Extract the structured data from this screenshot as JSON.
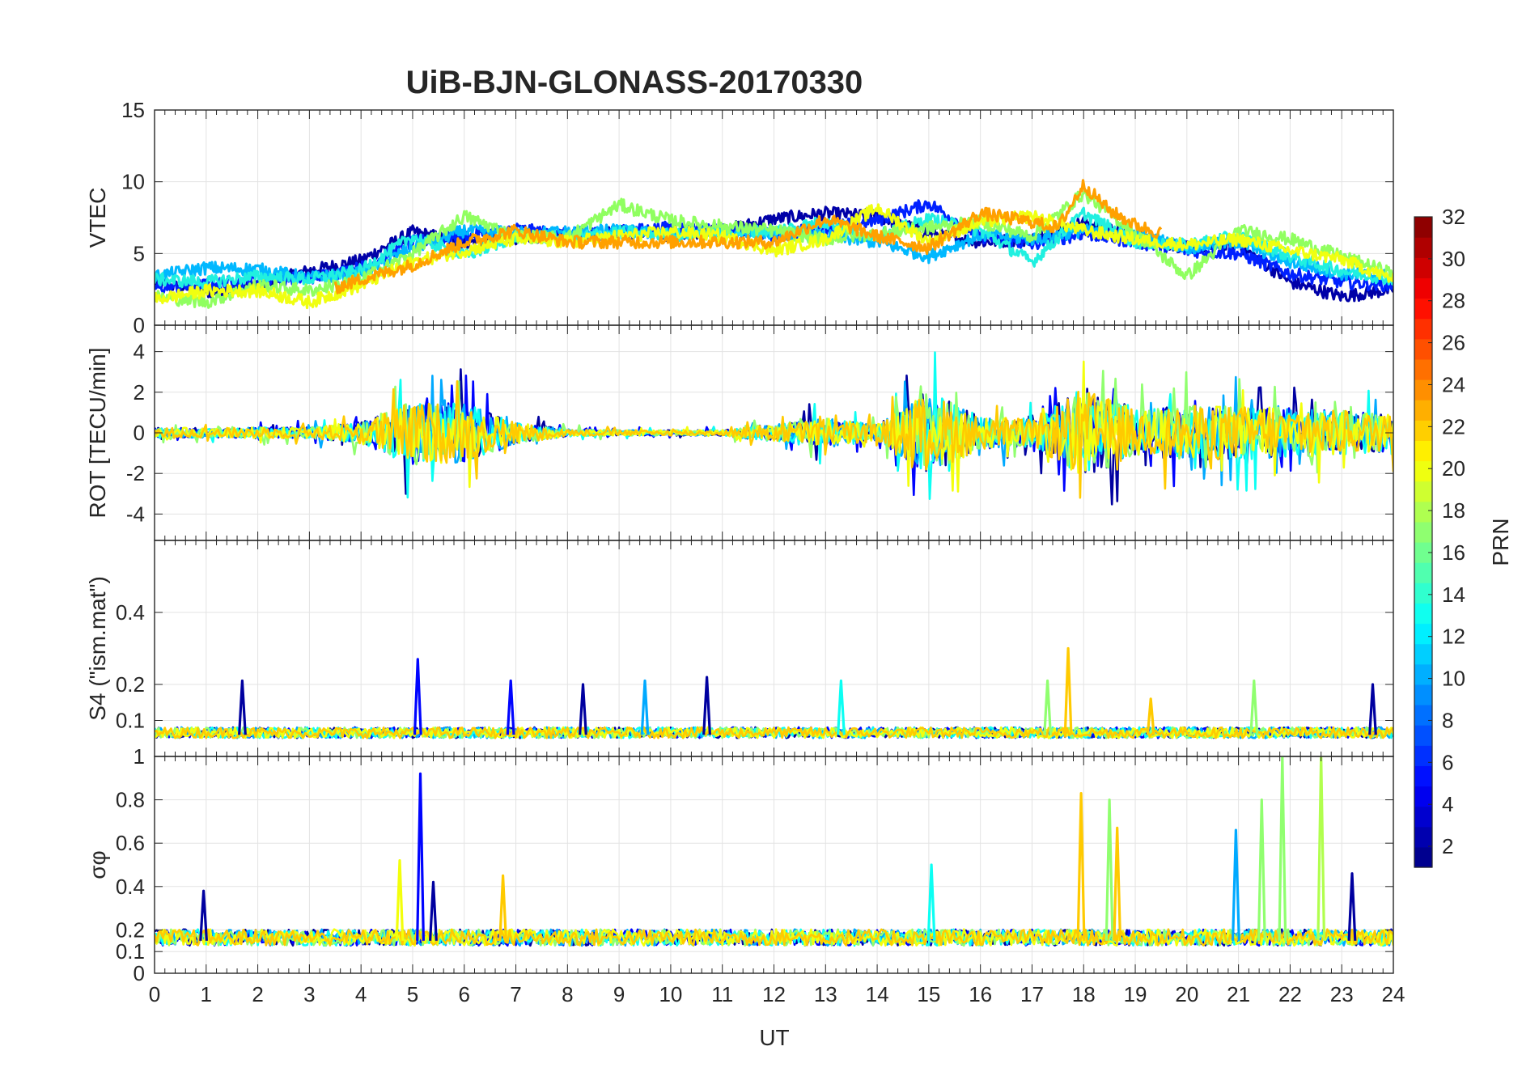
{
  "chart_data": {
    "type": "line",
    "title": "UiB-BJN-GLONASS-20170330",
    "xlabel": "UT",
    "xlim": [
      0,
      24
    ],
    "x_ticks": [
      "0",
      "1",
      "2",
      "3",
      "4",
      "5",
      "6",
      "7",
      "8",
      "9",
      "10",
      "11",
      "12",
      "13",
      "14",
      "15",
      "16",
      "17",
      "18",
      "19",
      "20",
      "21",
      "22",
      "23",
      "24"
    ],
    "grid": true,
    "colorbar": {
      "label": "PRN",
      "range": [
        1,
        32
      ],
      "colormap": "jet",
      "tick_labels": [
        "2",
        "4",
        "6",
        "8",
        "10",
        "12",
        "14",
        "16",
        "18",
        "20",
        "22",
        "24",
        "26",
        "28",
        "30",
        "32"
      ]
    },
    "panels": [
      {
        "id": "vtec",
        "ylabel": "VTEC",
        "ylim": [
          0,
          15
        ],
        "y_ticks": [
          "0",
          "5",
          "10",
          "15"
        ],
        "series": [
          {
            "prn": 2,
            "color": "#0000a8",
            "x": [
              0,
              1,
              2,
              3,
              4,
              5,
              6,
              7,
              8,
              9,
              10,
              11,
              12,
              13,
              14,
              15,
              16,
              17,
              18,
              19,
              20,
              21,
              22,
              23,
              24
            ],
            "y": [
              3,
              2.3,
              2.8,
              3.8,
              4.5,
              6.5,
              5.8,
              6.1,
              6.3,
              6.5,
              6.2,
              6.6,
              7.4,
              7.8,
              7.6,
              6.4,
              5.8,
              6.0,
              7.2,
              6.2,
              5.4,
              5.6,
              3.0,
              2.0,
              2.5
            ]
          },
          {
            "prn": 5,
            "color": "#0020ff",
            "x": [
              0,
              1,
              2,
              3,
              4,
              5,
              6,
              7,
              8,
              9,
              10,
              11,
              12,
              13,
              14,
              15,
              16,
              17,
              18,
              19,
              20,
              21,
              22,
              23,
              24
            ],
            "y": [
              2.6,
              2.8,
              3.2,
              3.3,
              4.0,
              5.8,
              6.2,
              6.7,
              6.3,
              6.5,
              6.8,
              6.6,
              6.3,
              6.8,
              7.3,
              8.5,
              6.2,
              5.6,
              6.4,
              5.8,
              5.2,
              5.0,
              3.6,
              3.0,
              2.8
            ]
          },
          {
            "prn": 10,
            "color": "#00b8ff",
            "x": [
              0,
              1,
              2,
              3,
              4,
              5,
              6,
              7,
              8,
              9,
              10,
              11,
              12,
              13,
              14,
              15,
              16,
              17,
              18,
              19,
              20,
              21,
              22,
              23,
              24
            ],
            "y": [
              3.4,
              4.0,
              3.9,
              3.3,
              3.6,
              5.4,
              6.6,
              6.4,
              6.5,
              6.6,
              6.3,
              6.5,
              6.4,
              6.2,
              5.8,
              4.8,
              6.3,
              6.0,
              6.6,
              6.4,
              5.4,
              5.8,
              4.4,
              3.6,
              3.4
            ]
          },
          {
            "prn": 13,
            "color": "#20f0e0",
            "x": [
              0,
              1,
              2,
              3,
              4,
              5,
              6,
              7,
              8,
              9,
              10,
              11,
              12,
              13,
              14,
              15,
              16,
              17,
              18,
              19,
              20,
              21,
              22,
              23,
              24
            ],
            "y": [
              3.2,
              3.0,
              3.4,
              3.2,
              3.8,
              6.2,
              4.8,
              6.2,
              6.1,
              6.5,
              6.3,
              6.4,
              6.6,
              7.2,
              6.2,
              7.4,
              6.6,
              4.4,
              7.8,
              5.8,
              5.6,
              6.2,
              4.8,
              3.8,
              3.2
            ]
          },
          {
            "prn": 17,
            "color": "#90ff60",
            "x": [
              0,
              1,
              2,
              3,
              4,
              5,
              6,
              7,
              8,
              9,
              10,
              11,
              12,
              13,
              14,
              15,
              16,
              17,
              18,
              19,
              20,
              21,
              22,
              23,
              24
            ],
            "y": [
              2.0,
              1.6,
              2.8,
              2.4,
              3.2,
              5.0,
              7.6,
              6.2,
              6.1,
              8.4,
              7.3,
              6.9,
              6.6,
              6.0,
              6.4,
              6.8,
              7.2,
              6.2,
              9.2,
              6.4,
              3.4,
              6.6,
              6.0,
              4.8,
              3.6
            ]
          },
          {
            "prn": 20,
            "color": "#f0ff10",
            "x": [
              0,
              1,
              2,
              3,
              4,
              5,
              6,
              7,
              8,
              9,
              10,
              11,
              12,
              13,
              14,
              15,
              16,
              17,
              18,
              19,
              20,
              21,
              22,
              23,
              24
            ],
            "y": [
              1.8,
              2.4,
              2.4,
              1.6,
              2.8,
              4.4,
              5.2,
              6.0,
              5.8,
              6.2,
              6.5,
              6.2,
              5.2,
              6.0,
              8.2,
              5.8,
              7.2,
              7.6,
              6.6,
              6.0,
              5.6,
              6.0,
              5.2,
              4.6,
              3.2
            ]
          },
          {
            "prn": 22,
            "color": "#ffa000",
            "x": [
              3.5,
              4,
              5,
              6,
              7,
              8,
              12,
              13,
              14,
              15,
              16,
              17,
              17.5,
              18,
              18.5,
              19,
              19.5
            ],
            "y": [
              2.6,
              3.2,
              4.2,
              5.8,
              6.6,
              5.8,
              5.8,
              7.4,
              6.2,
              5.4,
              7.8,
              7.2,
              6.8,
              9.8,
              8.0,
              7.0,
              6.4
            ]
          }
        ]
      },
      {
        "id": "rot",
        "ylabel": "ROT [TECU/min]",
        "ylim": [
          -5.3,
          5.3
        ],
        "y_ticks": [
          "-4",
          "-2",
          "0",
          "2",
          "4"
        ],
        "activity_envelope": {
          "x": [
            0,
            1,
            2,
            3,
            4,
            5,
            6,
            7,
            8,
            9,
            10,
            11,
            12,
            13,
            14,
            15,
            16,
            17,
            18,
            19,
            20,
            21,
            22,
            23,
            24
          ],
          "amplitude": [
            0.6,
            0.5,
            0.6,
            0.6,
            1.2,
            3.5,
            3.2,
            1.2,
            0.4,
            0.3,
            0.3,
            0.3,
            1.0,
            1.6,
            0.9,
            4.5,
            1.8,
            1.5,
            5.0,
            2.5,
            3.0,
            3.0,
            2.8,
            2.4,
            2.0
          ]
        },
        "series_prn": [
          2,
          5,
          10,
          13,
          17,
          20,
          22
        ]
      },
      {
        "id": "s4",
        "ylabel": "S4 (\"ism.mat\")",
        "ylim": [
          0,
          0.6
        ],
        "y_ticks": [
          "0.1",
          "0.2",
          "0.4"
        ],
        "baseline": 0.06,
        "peaks": [
          {
            "x": 1.7,
            "y": 0.21,
            "prn": 2
          },
          {
            "x": 5.1,
            "y": 0.27,
            "prn": 5
          },
          {
            "x": 6.9,
            "y": 0.21,
            "prn": 5
          },
          {
            "x": 8.3,
            "y": 0.2,
            "prn": 2
          },
          {
            "x": 9.5,
            "y": 0.21,
            "prn": 10
          },
          {
            "x": 10.7,
            "y": 0.22,
            "prn": 2
          },
          {
            "x": 13.3,
            "y": 0.21,
            "prn": 13
          },
          {
            "x": 17.3,
            "y": 0.21,
            "prn": 17
          },
          {
            "x": 17.7,
            "y": 0.3,
            "prn": 22
          },
          {
            "x": 19.3,
            "y": 0.16,
            "prn": 22
          },
          {
            "x": 21.3,
            "y": 0.21,
            "prn": 17
          },
          {
            "x": 23.6,
            "y": 0.2,
            "prn": 2
          }
        ]
      },
      {
        "id": "sigma_phi",
        "ylabel": "σφ",
        "ylim": [
          0,
          1
        ],
        "y_ticks": [
          "0",
          "0.1",
          "0.2",
          "0.4",
          "0.6",
          "0.8",
          "1"
        ],
        "baseline": 0.15,
        "peaks": [
          {
            "x": 0.95,
            "y": 0.38,
            "prn": 2
          },
          {
            "x": 4.75,
            "y": 0.52,
            "prn": 20
          },
          {
            "x": 5.15,
            "y": 0.92,
            "prn": 5
          },
          {
            "x": 5.4,
            "y": 0.42,
            "prn": 2
          },
          {
            "x": 6.75,
            "y": 0.45,
            "prn": 22
          },
          {
            "x": 15.05,
            "y": 0.5,
            "prn": 13
          },
          {
            "x": 17.95,
            "y": 0.83,
            "prn": 22
          },
          {
            "x": 18.5,
            "y": 0.8,
            "prn": 17
          },
          {
            "x": 18.65,
            "y": 0.67,
            "prn": 22
          },
          {
            "x": 20.95,
            "y": 0.66,
            "prn": 10
          },
          {
            "x": 21.45,
            "y": 0.8,
            "prn": 17
          },
          {
            "x": 21.85,
            "y": 1.0,
            "prn": 17
          },
          {
            "x": 22.6,
            "y": 1.0,
            "prn": 18
          },
          {
            "x": 23.2,
            "y": 0.46,
            "prn": 2
          }
        ]
      }
    ]
  }
}
